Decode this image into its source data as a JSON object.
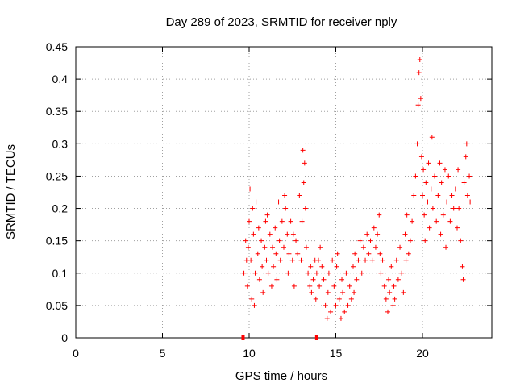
{
  "chart_data": {
    "type": "scatter",
    "title": "Day 289 of 2023, SRMTID for receiver nply",
    "xlabel": "GPS time / hours",
    "ylabel": "SRMTID / TECUs",
    "xlim": [
      0,
      24
    ],
    "ylim": [
      0,
      0.45
    ],
    "x_ticks": [
      "0",
      "5",
      "10",
      "15",
      "20"
    ],
    "y_ticks": [
      "0",
      "0.05",
      "0.1",
      "0.15",
      "0.2",
      "0.25",
      "0.3",
      "0.35",
      "0.4",
      "0.45"
    ],
    "grid": true,
    "marker": "+",
    "series": [
      {
        "name": "SRMTID",
        "color": "#ff0000",
        "points": [
          [
            9.7,
            0.1
          ],
          [
            9.8,
            0.15
          ],
          [
            9.85,
            0.12
          ],
          [
            9.9,
            0.08
          ],
          [
            9.95,
            0.14
          ],
          [
            10.0,
            0.18
          ],
          [
            10.05,
            0.23
          ],
          [
            10.1,
            0.12
          ],
          [
            10.15,
            0.06
          ],
          [
            10.2,
            0.2
          ],
          [
            10.25,
            0.16
          ],
          [
            10.3,
            0.05
          ],
          [
            10.35,
            0.1
          ],
          [
            10.4,
            0.21
          ],
          [
            10.5,
            0.13
          ],
          [
            10.55,
            0.17
          ],
          [
            10.6,
            0.09
          ],
          [
            10.7,
            0.15
          ],
          [
            10.75,
            0.11
          ],
          [
            10.8,
            0.07
          ],
          [
            10.9,
            0.14
          ],
          [
            10.95,
            0.18
          ],
          [
            11.0,
            0.12
          ],
          [
            11.05,
            0.19
          ],
          [
            11.1,
            0.1
          ],
          [
            11.2,
            0.16
          ],
          [
            11.3,
            0.08
          ],
          [
            11.35,
            0.14
          ],
          [
            11.4,
            0.11
          ],
          [
            11.5,
            0.17
          ],
          [
            11.55,
            0.13
          ],
          [
            11.6,
            0.09
          ],
          [
            11.7,
            0.21
          ],
          [
            11.75,
            0.15
          ],
          [
            11.8,
            0.12
          ],
          [
            11.9,
            0.18
          ],
          [
            12.0,
            0.14
          ],
          [
            12.05,
            0.22
          ],
          [
            12.1,
            0.2
          ],
          [
            12.2,
            0.16
          ],
          [
            12.25,
            0.1
          ],
          [
            12.3,
            0.13
          ],
          [
            12.4,
            0.18
          ],
          [
            12.5,
            0.12
          ],
          [
            12.55,
            0.16
          ],
          [
            12.6,
            0.08
          ],
          [
            12.7,
            0.15
          ],
          [
            12.8,
            0.13
          ],
          [
            12.9,
            0.22
          ],
          [
            13.0,
            0.12
          ],
          [
            13.05,
            0.18
          ],
          [
            13.1,
            0.29
          ],
          [
            13.15,
            0.24
          ],
          [
            13.2,
            0.27
          ],
          [
            13.25,
            0.2
          ],
          [
            13.3,
            0.14
          ],
          [
            13.4,
            0.1
          ],
          [
            13.5,
            0.08
          ],
          [
            13.55,
            0.11
          ],
          [
            13.6,
            0.07
          ],
          [
            13.7,
            0.09
          ],
          [
            13.8,
            0.12
          ],
          [
            13.85,
            0.06
          ],
          [
            13.9,
            0.1
          ],
          [
            14.0,
            0.12
          ],
          [
            14.05,
            0.08
          ],
          [
            14.1,
            0.14
          ],
          [
            14.2,
            0.11
          ],
          [
            14.3,
            0.09
          ],
          [
            14.4,
            0.05
          ],
          [
            14.5,
            0.03
          ],
          [
            14.55,
            0.07
          ],
          [
            14.6,
            0.1
          ],
          [
            14.7,
            0.04
          ],
          [
            14.8,
            0.12
          ],
          [
            14.9,
            0.08
          ],
          [
            15.0,
            0.05
          ],
          [
            15.05,
            0.11
          ],
          [
            15.1,
            0.13
          ],
          [
            15.2,
            0.06
          ],
          [
            15.3,
            0.03
          ],
          [
            15.35,
            0.09
          ],
          [
            15.4,
            0.07
          ],
          [
            15.5,
            0.04
          ],
          [
            15.6,
            0.1
          ],
          [
            15.7,
            0.05
          ],
          [
            15.8,
            0.08
          ],
          [
            15.9,
            0.06
          ],
          [
            16.0,
            0.11
          ],
          [
            16.05,
            0.07
          ],
          [
            16.1,
            0.13
          ],
          [
            16.2,
            0.09
          ],
          [
            16.3,
            0.12
          ],
          [
            16.4,
            0.15
          ],
          [
            16.5,
            0.1
          ],
          [
            16.6,
            0.14
          ],
          [
            16.7,
            0.12
          ],
          [
            16.8,
            0.16
          ],
          [
            16.9,
            0.13
          ],
          [
            17.0,
            0.15
          ],
          [
            17.1,
            0.12
          ],
          [
            17.2,
            0.17
          ],
          [
            17.3,
            0.14
          ],
          [
            17.4,
            0.16
          ],
          [
            17.5,
            0.19
          ],
          [
            17.55,
            0.13
          ],
          [
            17.6,
            0.1
          ],
          [
            17.7,
            0.12
          ],
          [
            17.8,
            0.08
          ],
          [
            17.9,
            0.06
          ],
          [
            18.0,
            0.04
          ],
          [
            18.05,
            0.09
          ],
          [
            18.1,
            0.07
          ],
          [
            18.2,
            0.11
          ],
          [
            18.3,
            0.05
          ],
          [
            18.35,
            0.08
          ],
          [
            18.4,
            0.06
          ],
          [
            18.5,
            0.12
          ],
          [
            18.6,
            0.09
          ],
          [
            18.7,
            0.14
          ],
          [
            18.8,
            0.1
          ],
          [
            18.9,
            0.07
          ],
          [
            19.0,
            0.16
          ],
          [
            19.05,
            0.12
          ],
          [
            19.1,
            0.19
          ],
          [
            19.2,
            0.13
          ],
          [
            19.3,
            0.15
          ],
          [
            19.4,
            0.18
          ],
          [
            19.5,
            0.22
          ],
          [
            19.6,
            0.25
          ],
          [
            19.7,
            0.3
          ],
          [
            19.75,
            0.36
          ],
          [
            19.8,
            0.41
          ],
          [
            19.85,
            0.43
          ],
          [
            19.9,
            0.37
          ],
          [
            19.95,
            0.28
          ],
          [
            20.0,
            0.22
          ],
          [
            20.05,
            0.26
          ],
          [
            20.1,
            0.19
          ],
          [
            20.15,
            0.15
          ],
          [
            20.2,
            0.24
          ],
          [
            20.3,
            0.21
          ],
          [
            20.35,
            0.27
          ],
          [
            20.4,
            0.17
          ],
          [
            20.5,
            0.23
          ],
          [
            20.55,
            0.31
          ],
          [
            20.6,
            0.2
          ],
          [
            20.7,
            0.25
          ],
          [
            20.8,
            0.18
          ],
          [
            20.9,
            0.22
          ],
          [
            21.0,
            0.27
          ],
          [
            21.05,
            0.16
          ],
          [
            21.1,
            0.24
          ],
          [
            21.2,
            0.19
          ],
          [
            21.3,
            0.26
          ],
          [
            21.35,
            0.14
          ],
          [
            21.4,
            0.21
          ],
          [
            21.5,
            0.25
          ],
          [
            21.6,
            0.18
          ],
          [
            21.7,
            0.22
          ],
          [
            21.8,
            0.2
          ],
          [
            21.9,
            0.23
          ],
          [
            22.0,
            0.17
          ],
          [
            22.05,
            0.26
          ],
          [
            22.1,
            0.2
          ],
          [
            22.2,
            0.15
          ],
          [
            22.3,
            0.11
          ],
          [
            22.35,
            0.09
          ],
          [
            22.4,
            0.24
          ],
          [
            22.5,
            0.28
          ],
          [
            22.55,
            0.3
          ],
          [
            22.6,
            0.22
          ],
          [
            22.7,
            0.25
          ],
          [
            22.75,
            0.21
          ]
        ]
      }
    ],
    "axis_markers": [
      9.65,
      13.9
    ]
  }
}
